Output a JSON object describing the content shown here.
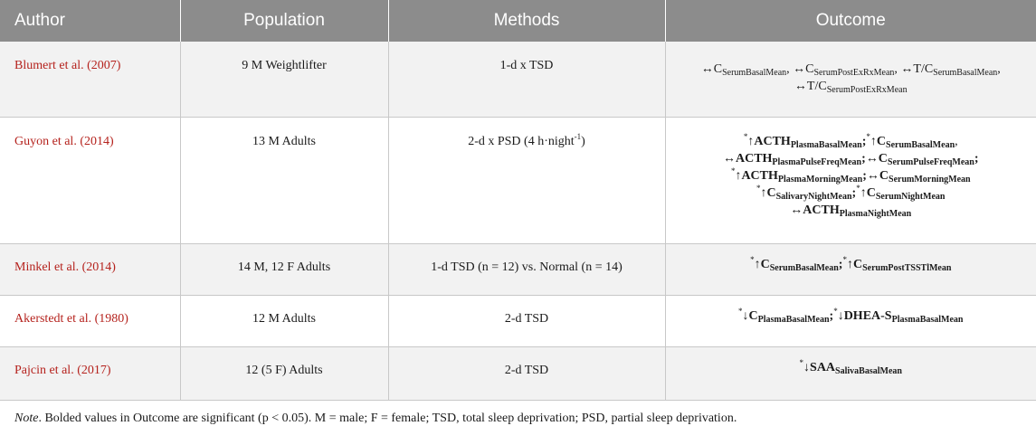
{
  "headers": {
    "author": "Author",
    "population": "Population",
    "methods": "Methods",
    "outcome": "Outcome"
  },
  "rows": [
    {
      "author": "Blumert et al. (2007)",
      "population": "9 M Weightlifter",
      "methods": "1-d x TSD",
      "outcome_lines": [
        "↔C_SerumBasalMean, ↔C_SerumPostExRxMean, ↔T/C_SerumBasalMean,",
        "↔T/C_SerumPostExRxMean"
      ]
    },
    {
      "author": "Guyon et al. (2014)",
      "population": "13 M Adults",
      "methods_main": "2-d x PSD (4 h·night",
      "methods_sup": "-1",
      "methods_end": ")",
      "outcome_lines": [
        "*↑ACTH_PlasmaBasalMean;*↑C_SerumBasalMean,",
        "↔ACTH_PlasmaPulseFreqMean;↔C_SerumPulseFreqMean;",
        "*↑ACTH_PlasmaMorningMean;↔C_SerumMorningMean",
        "*↑C_SalivaryNightMean;*↑C_SerumNightMean",
        "↔ACTH_PlasmaNightMean"
      ]
    },
    {
      "author": "Minkel et al. (2014)",
      "population": "14 M, 12 F Adults",
      "methods": "1-d TSD (n = 12) vs. Normal (n = 14)",
      "outcome_lines": [
        "*↑C_SerumBasalMean;*↑C_SerumPostTSSTlMean"
      ]
    },
    {
      "author": "Akerstedt et al. (1980)",
      "population": "12 M Adults",
      "methods": "2-d TSD",
      "outcome_lines": [
        "*↓C_PlasmaBasalMean;*↓DHEA-S_PlasmaBasalMean"
      ]
    },
    {
      "author": "Pajcin et al. (2017)",
      "population": "12 (5 F) Adults",
      "methods": "2-d TSD",
      "outcome_lines": [
        "*↓SAA_SalivaBasalMean"
      ]
    }
  ],
  "outcome_tokens": {
    "star": "*",
    "up": "↑",
    "down": "↓",
    "both": "↔",
    "C": "C",
    "T_over_C": "T/C",
    "ACTH": "ACTH",
    "DHEA_S": "DHEA-S",
    "SAA": "SAA",
    "sub_serum_basal": "SerumBasalMean",
    "sub_serum_postexrx": "SerumPostExRxMean",
    "sub_plasma_basal": "PlasmaBasalMean",
    "sub_plasma_pulse": "PlasmaPulseFreqMean",
    "sub_serum_pulse": "SerumPulseFreqMean",
    "sub_plasma_morning": "PlasmaMorningMean",
    "sub_serum_morning": "SerumMorningMean",
    "sub_salivary_night": "SalivaryNightMean",
    "sub_serum_night": "SerumNightMean",
    "sub_plasma_night": "PlasmaNightMean",
    "sub_serum_posttsst": "SerumPostTSSTlMean",
    "sub_saliva_basal": "SalivaBasalMean"
  },
  "note": {
    "label": "Note",
    "text": ". Bolded values in Outcome are significant (p < 0.05). M = male; F = female; TSD, total sleep deprivation; PSD, partial sleep deprivation."
  }
}
